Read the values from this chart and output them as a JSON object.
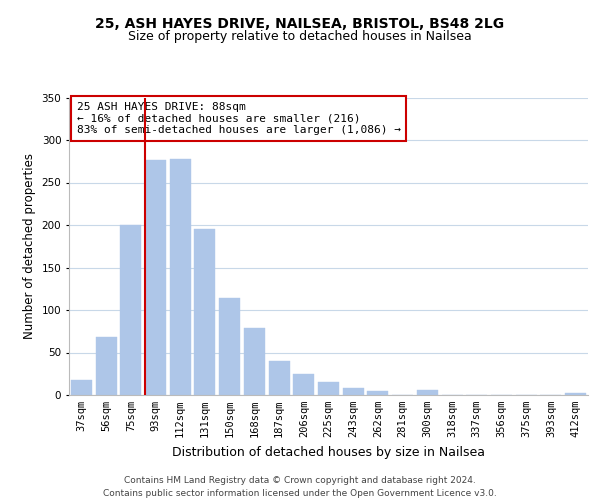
{
  "title1": "25, ASH HAYES DRIVE, NAILSEA, BRISTOL, BS48 2LG",
  "title2": "Size of property relative to detached houses in Nailsea",
  "xlabel": "Distribution of detached houses by size in Nailsea",
  "ylabel": "Number of detached properties",
  "categories": [
    "37sqm",
    "56sqm",
    "75sqm",
    "93sqm",
    "112sqm",
    "131sqm",
    "150sqm",
    "168sqm",
    "187sqm",
    "206sqm",
    "225sqm",
    "243sqm",
    "262sqm",
    "281sqm",
    "300sqm",
    "318sqm",
    "337sqm",
    "356sqm",
    "375sqm",
    "393sqm",
    "412sqm"
  ],
  "values": [
    18,
    68,
    200,
    277,
    278,
    195,
    114,
    79,
    40,
    25,
    15,
    8,
    5,
    0,
    6,
    0,
    0,
    0,
    0,
    0,
    2
  ],
  "bar_color": "#aec6e8",
  "bar_edge_color": "#aec6e8",
  "subject_line_color": "#cc0000",
  "annotation_line1": "25 ASH HAYES DRIVE: 88sqm",
  "annotation_line2": "← 16% of detached houses are smaller (216)",
  "annotation_line3": "83% of semi-detached houses are larger (1,086) →",
  "annotation_box_color": "#ffffff",
  "annotation_box_edge_color": "#cc0000",
  "ylim": [
    0,
    350
  ],
  "yticks": [
    0,
    50,
    100,
    150,
    200,
    250,
    300,
    350
  ],
  "footer1": "Contains HM Land Registry data © Crown copyright and database right 2024.",
  "footer2": "Contains public sector information licensed under the Open Government Licence v3.0.",
  "bg_color": "#ffffff",
  "grid_color": "#c8d8e8",
  "title1_fontsize": 10,
  "title2_fontsize": 9,
  "xlabel_fontsize": 9,
  "ylabel_fontsize": 8.5,
  "tick_fontsize": 7.5,
  "annotation_fontsize": 8,
  "footer_fontsize": 6.5
}
